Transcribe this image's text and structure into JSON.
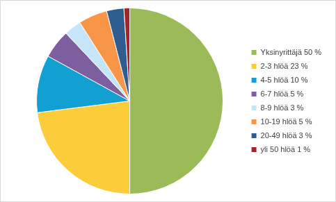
{
  "chart_data": {
    "type": "pie",
    "categories": [
      "Yksinyrittäjä 50 %",
      "2-3 hlöä 23 %",
      "4-5 hlöä 10 %",
      "6-7 hlöä 5 %",
      "8-9 hlöä 3 %",
      "10-19 hlöä 5 %",
      "20-49 hlöä 3 %",
      "yli 50 hlöä 1 %"
    ],
    "values": [
      50,
      23,
      10,
      5,
      3,
      5,
      3,
      1
    ],
    "colors": [
      "#9bbb59",
      "#fdcc3a",
      "#12a0d2",
      "#7d5fa0",
      "#c5e6f8",
      "#f79646",
      "#2f5d8f",
      "#a0262a"
    ],
    "legend": "right"
  }
}
